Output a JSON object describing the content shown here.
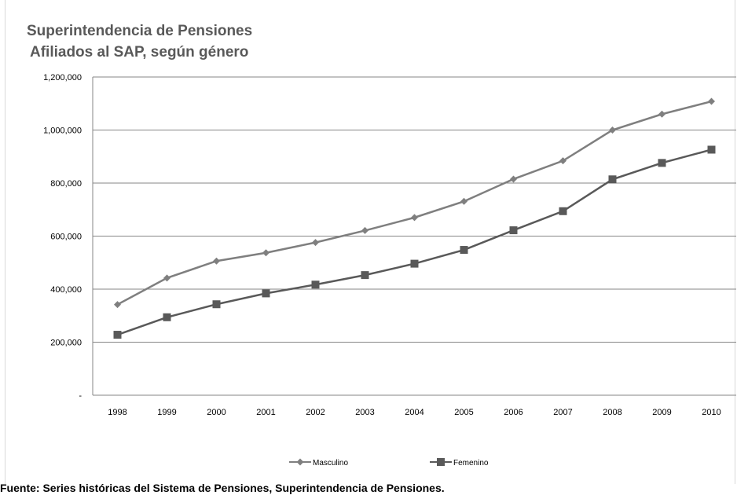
{
  "chart_data": {
    "type": "line",
    "title": "Superintendencia de Pensiones",
    "subtitle": "Afiliados al SAP, según género",
    "categories": [
      "1998",
      "1999",
      "2000",
      "2001",
      "2002",
      "2003",
      "2004",
      "2005",
      "2006",
      "2007",
      "2008",
      "2009",
      "2010"
    ],
    "series": [
      {
        "name": "Masculino",
        "marker": "diamond",
        "color": "#7f7f7f",
        "values": [
          342000,
          442000,
          506000,
          537000,
          576000,
          621000,
          670000,
          731000,
          815000,
          884000,
          1000000,
          1060000,
          1108000
        ]
      },
      {
        "name": "Femenino",
        "marker": "square",
        "color": "#595959",
        "values": [
          228000,
          294000,
          343000,
          384000,
          417000,
          453000,
          496000,
          548000,
          622000,
          694000,
          814000,
          876000,
          926000
        ]
      }
    ],
    "y_ticks": [
      0,
      200000,
      400000,
      600000,
      800000,
      1000000,
      1200000
    ],
    "y_tick_labels": [
      "-",
      "200,000",
      "400,000",
      "600,000",
      "800,000",
      "1,000,000",
      "1,200,000"
    ],
    "ylim": [
      0,
      1200000
    ],
    "grid": "horizontal",
    "legend_position": "bottom",
    "source": "Fuente:  Series históricas del Sistema de Pensiones, Superintendencia de Pensiones."
  }
}
